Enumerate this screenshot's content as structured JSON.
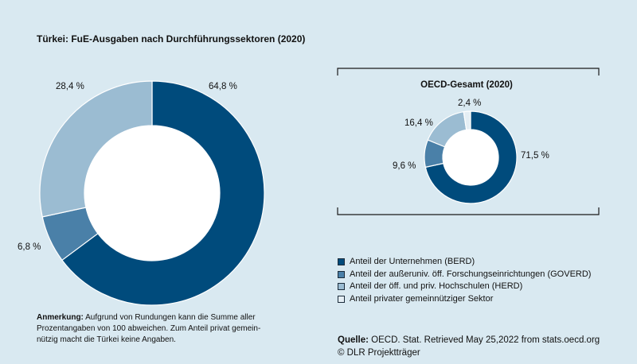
{
  "chart_data": [
    {
      "type": "pie",
      "title": "Türkei: FuE-Ausgaben nach Durchführungssektoren (2020)",
      "slices": [
        {
          "label": "64,8 %",
          "value": 64.8,
          "color": "#004b7c"
        },
        {
          "label": "6,8 %",
          "value": 6.8,
          "color": "#4a80a8"
        },
        {
          "label": "28,4 %",
          "value": 28.4,
          "color": "#9bbcd2"
        }
      ]
    },
    {
      "type": "pie",
      "title": "OECD-Gesamt (2020)",
      "slices": [
        {
          "label": "71,5 %",
          "value": 71.5,
          "color": "#004b7c"
        },
        {
          "label": "9,6 %",
          "value": 9.6,
          "color": "#4a80a8"
        },
        {
          "label": "16,4 %",
          "value": 16.4,
          "color": "#9bbcd2"
        },
        {
          "label": "2,4 %",
          "value": 2.4,
          "color": "#e4eef4"
        }
      ]
    }
  ],
  "legend": [
    {
      "label": "Anteil der Unternehmen (BERD)",
      "color": "#004b7c"
    },
    {
      "label": "Anteil der außeruniv. öff. Forschungseinrichtungen (GOVERD)",
      "color": "#4a80a8"
    },
    {
      "label": "Anteil der öff. und priv. Hochschulen (HERD)",
      "color": "#9bbcd2"
    },
    {
      "label": "Anteil privater gemeinnütziger Sektor",
      "color": "#e4eef4"
    }
  ],
  "note": {
    "bold": "Anmerkung:",
    "line1": " Aufgrund von Rundungen kann die Summe aller",
    "line2": "Prozentangaben von 100 abweichen. Zum Anteil privat gemein-",
    "line3": "nützig macht die Türkei keine Angaben."
  },
  "source": {
    "bold": "Quelle:",
    "text": " OECD. Stat. Retrieved May 25,2022 from stats.oecd.org",
    "copyright": "© DLR Projektträger"
  }
}
